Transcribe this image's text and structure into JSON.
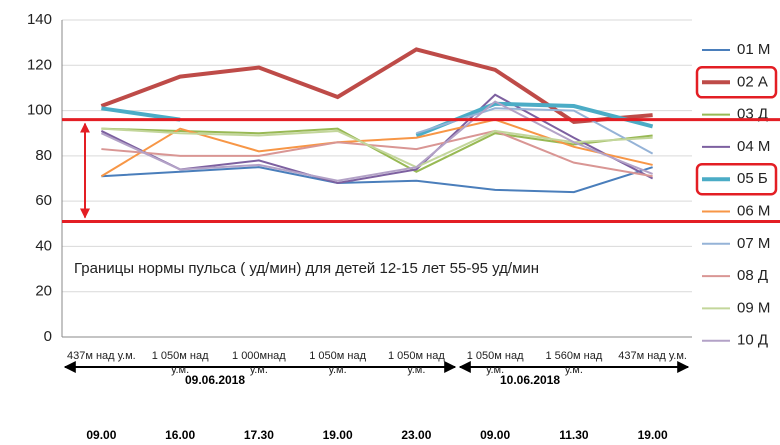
{
  "chart_data": {
    "type": "line",
    "categories": [
      "437м над у.м.",
      "1 050м над у.м.",
      "1 000мнад у.м.",
      "1 050м над у.м.",
      "1 050м над у.м.",
      "1 050м над у.м.",
      "1 560м над у.м.",
      "437м над у.м."
    ],
    "series": [
      {
        "name": "01 М",
        "color": "#4a7ebb",
        "values": [
          71,
          73,
          75,
          68,
          69,
          65,
          64,
          75
        ]
      },
      {
        "name": "02 А",
        "color": "#be4b48",
        "highlight": true,
        "values": [
          102,
          115,
          119,
          106,
          127,
          118,
          95,
          98
        ]
      },
      {
        "name": "03 Д",
        "color": "#98b954",
        "values": [
          92,
          91,
          90,
          92,
          73,
          90,
          85,
          89
        ]
      },
      {
        "name": "04 М",
        "color": "#7d60a0",
        "values": [
          91,
          74,
          78,
          68,
          74,
          107,
          88,
          70
        ]
      },
      {
        "name": "05 Б",
        "color": "#4bacc6",
        "highlight": true,
        "values": [
          101,
          96,
          null,
          null,
          89,
          103,
          102,
          93
        ]
      },
      {
        "name": "06 М",
        "color": "#f79646",
        "values": [
          71,
          92,
          82,
          86,
          88,
          96,
          84,
          76
        ]
      },
      {
        "name": "07 М",
        "color": "#95b3d7",
        "values": [
          null,
          null,
          null,
          null,
          90,
          101,
          100,
          81
        ]
      },
      {
        "name": "08 Д",
        "color": "#d99694",
        "values": [
          83,
          80,
          80,
          86,
          83,
          91,
          77,
          71
        ]
      },
      {
        "name": "09 М",
        "color": "#c3d69b",
        "values": [
          92,
          90,
          89,
          91,
          75,
          91,
          86,
          88
        ]
      },
      {
        "name": "10 Д",
        "color": "#b3a2c7",
        "values": [
          90,
          74,
          76,
          69,
          75,
          104,
          86,
          72
        ]
      }
    ],
    "ylim": [
      0,
      140
    ],
    "yticks": [
      0,
      20,
      40,
      60,
      80,
      100,
      120,
      140
    ],
    "grid": true,
    "reference_lines": [
      96,
      51
    ],
    "reference_color": "#e31e24",
    "annotation": "Границы нормы пульса ( уд/мин) для детей 12-15 лет  55-95 уд/мин",
    "dates": [
      "09.06.2018",
      "10.06.2018"
    ],
    "times": [
      "09.00",
      "16.00",
      "17.30",
      "19.00",
      "23.00",
      "09.00",
      "11.30",
      "19.00"
    ]
  }
}
